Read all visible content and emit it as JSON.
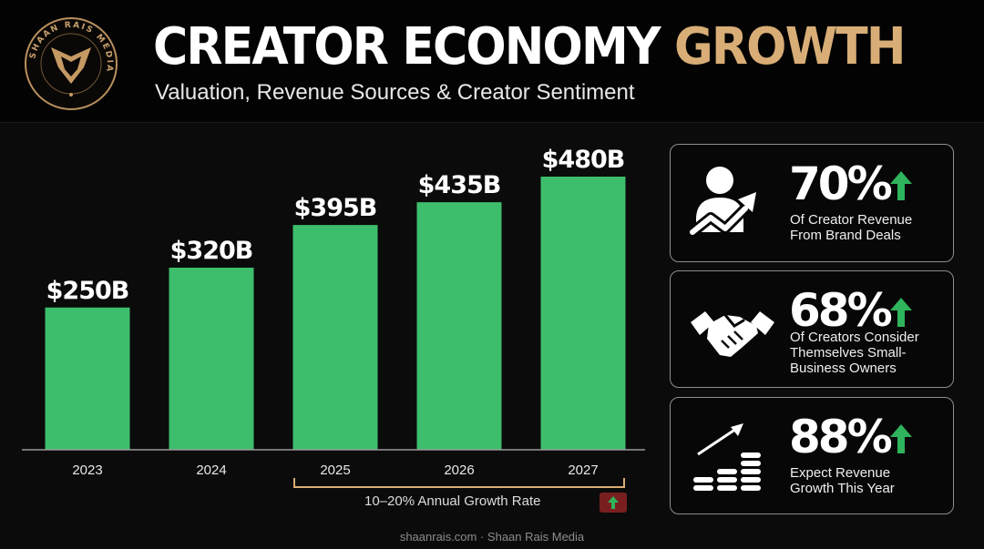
{
  "header": {
    "title_main": "CREATOR ECONOMY",
    "title_accent": "GROWTH",
    "subtitle": "Valuation, Revenue Sources & Creator Sentiment",
    "logo_text": "SHAAN RAIS MEDIA"
  },
  "chart_data": {
    "type": "bar",
    "categories": [
      "2023",
      "2024",
      "2025",
      "2026",
      "2027"
    ],
    "values": [
      250,
      320,
      395,
      435,
      480
    ],
    "data_labels": [
      "$250B",
      "$320B",
      "$395B",
      "$435B",
      "$480B"
    ],
    "unit": "$B",
    "ylim": [
      0,
      480
    ],
    "title": "",
    "xlabel": "",
    "ylabel": "",
    "grid": false,
    "bar_color": "#3dbe6c",
    "annotation": {
      "text": "10–20% Annual Growth Rate",
      "spans": [
        "2025",
        "2026",
        "2027"
      ]
    }
  },
  "stats": [
    {
      "value": "70%",
      "line1": "Of Creator Revenue",
      "line2": "From Brand Deals",
      "line3": "",
      "icon": "person-growth-chart-icon"
    },
    {
      "value": "68%",
      "line1": "Of Creators Consider",
      "line2": "Themselves Small-",
      "line3": "Business Owners",
      "icon": "handshake-icon"
    },
    {
      "value": "88%",
      "line1": "Expect Revenue",
      "line2": "Growth This Year",
      "line3": "",
      "icon": "coin-stacks-growth-icon"
    }
  ],
  "footer": "shaanrais.com · Shaan Rais Media",
  "colors": {
    "accent_gold": "#d8ad76",
    "bar_green": "#3dbe6c",
    "arrow_green": "#2fb35c",
    "badge_red": "#7a1f1f",
    "background": "#0b0b0b"
  }
}
